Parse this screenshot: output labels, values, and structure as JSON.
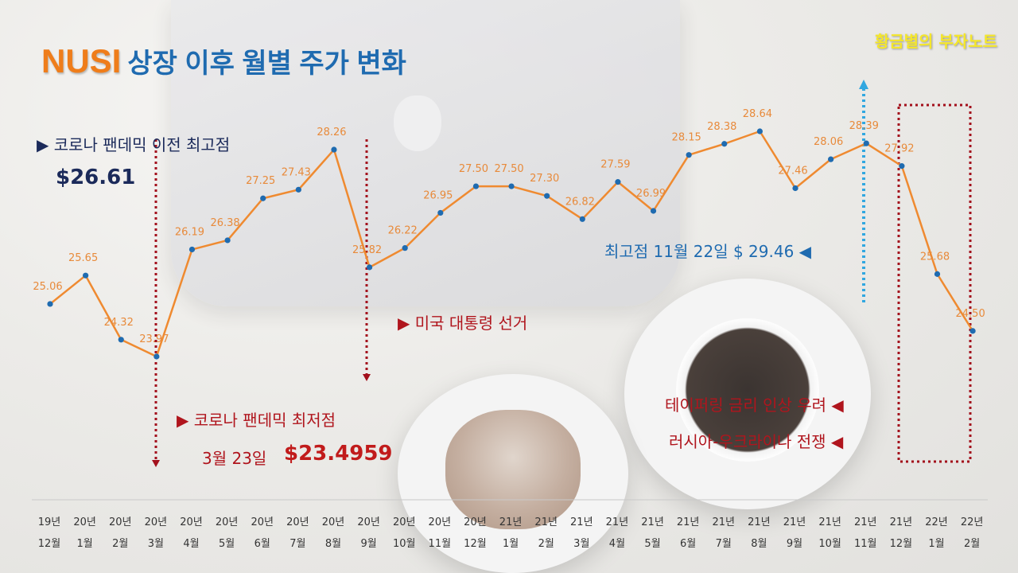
{
  "title": {
    "brand": "NUSI",
    "rest": "상장 이후 월별 주가 변화"
  },
  "watermark": "황금별의 부자노트",
  "annotations": {
    "pre_covid_high_label": "▶  코로나 팬데믹 이전 최고점",
    "pre_covid_high_value": "$26.61",
    "covid_low_label": "▶  코로나 팬데믹 최저점",
    "covid_low_date": "3월 23일",
    "covid_low_value": "$23.4959",
    "election_label": "▶  미국 대통령 선거",
    "all_time_high": "최고점 11월 22일 $ 29.46  ◀",
    "tapering": "테이퍼링 금리 인상 우려  ◀",
    "war": "러시아-우크라이나 전쟁  ◀"
  },
  "colors": {
    "line": "#ef8a30",
    "point": "#1f6bb0",
    "brand": "#ef7d1a",
    "title": "#1f6bb0",
    "marker_red": "#a3101c",
    "marker_blue": "#31a7e0"
  },
  "chart_data": {
    "type": "line",
    "categories": [
      "19년 12월",
      "20년 1월",
      "20년 2월",
      "20년 3월",
      "20년 4월",
      "20년 5월",
      "20년 6월",
      "20년 7월",
      "20년 8월",
      "20년 9월",
      "20년 10월",
      "20년 11월",
      "20년 12월",
      "21년 1월",
      "21년 2월",
      "21년 3월",
      "21년 4월",
      "21년 5월",
      "21년 6월",
      "21년 7월",
      "21년 8월",
      "21년 9월",
      "21년 10월",
      "21년 11월",
      "21년 12월",
      "22년 1월",
      "22년 2월"
    ],
    "tick_year": [
      "19년",
      "20년",
      "20년",
      "20년",
      "20년",
      "20년",
      "20년",
      "20년",
      "20년",
      "20년",
      "20년",
      "20년",
      "20년",
      "21년",
      "21년",
      "21년",
      "21년",
      "21년",
      "21년",
      "21년",
      "21년",
      "21년",
      "21년",
      "21년",
      "21년",
      "22년",
      "22년"
    ],
    "tick_month": [
      "12월",
      "1월",
      "2월",
      "3월",
      "4월",
      "5월",
      "6월",
      "7월",
      "8월",
      "9월",
      "10월",
      "11월",
      "12월",
      "1월",
      "2월",
      "3월",
      "4월",
      "5월",
      "6월",
      "7월",
      "8월",
      "9월",
      "10월",
      "11월",
      "12월",
      "1월",
      "2월"
    ],
    "values": [
      25.06,
      25.65,
      24.32,
      23.97,
      26.19,
      26.38,
      27.25,
      27.43,
      28.26,
      25.82,
      26.22,
      26.95,
      27.5,
      27.5,
      27.3,
      26.82,
      27.59,
      26.99,
      28.15,
      28.38,
      28.64,
      27.46,
      28.06,
      28.39,
      27.92,
      25.68,
      24.5
    ],
    "value_labels": [
      "25.06",
      "25.65",
      "24.32",
      "23.97",
      "26.19",
      "26.38",
      "27.25",
      "27.43",
      "28.26",
      "25.82",
      "26.22",
      "26.95",
      "27.50",
      "27.50",
      "27.30",
      "26.82",
      "27.59",
      "26.99",
      "28.15",
      "28.38",
      "28.64",
      "27.46",
      "28.06",
      "28.39",
      "27.92",
      "25.68",
      "24.50"
    ],
    "ylim": [
      23.97,
      28.64
    ],
    "grid": false,
    "legend": "none"
  }
}
